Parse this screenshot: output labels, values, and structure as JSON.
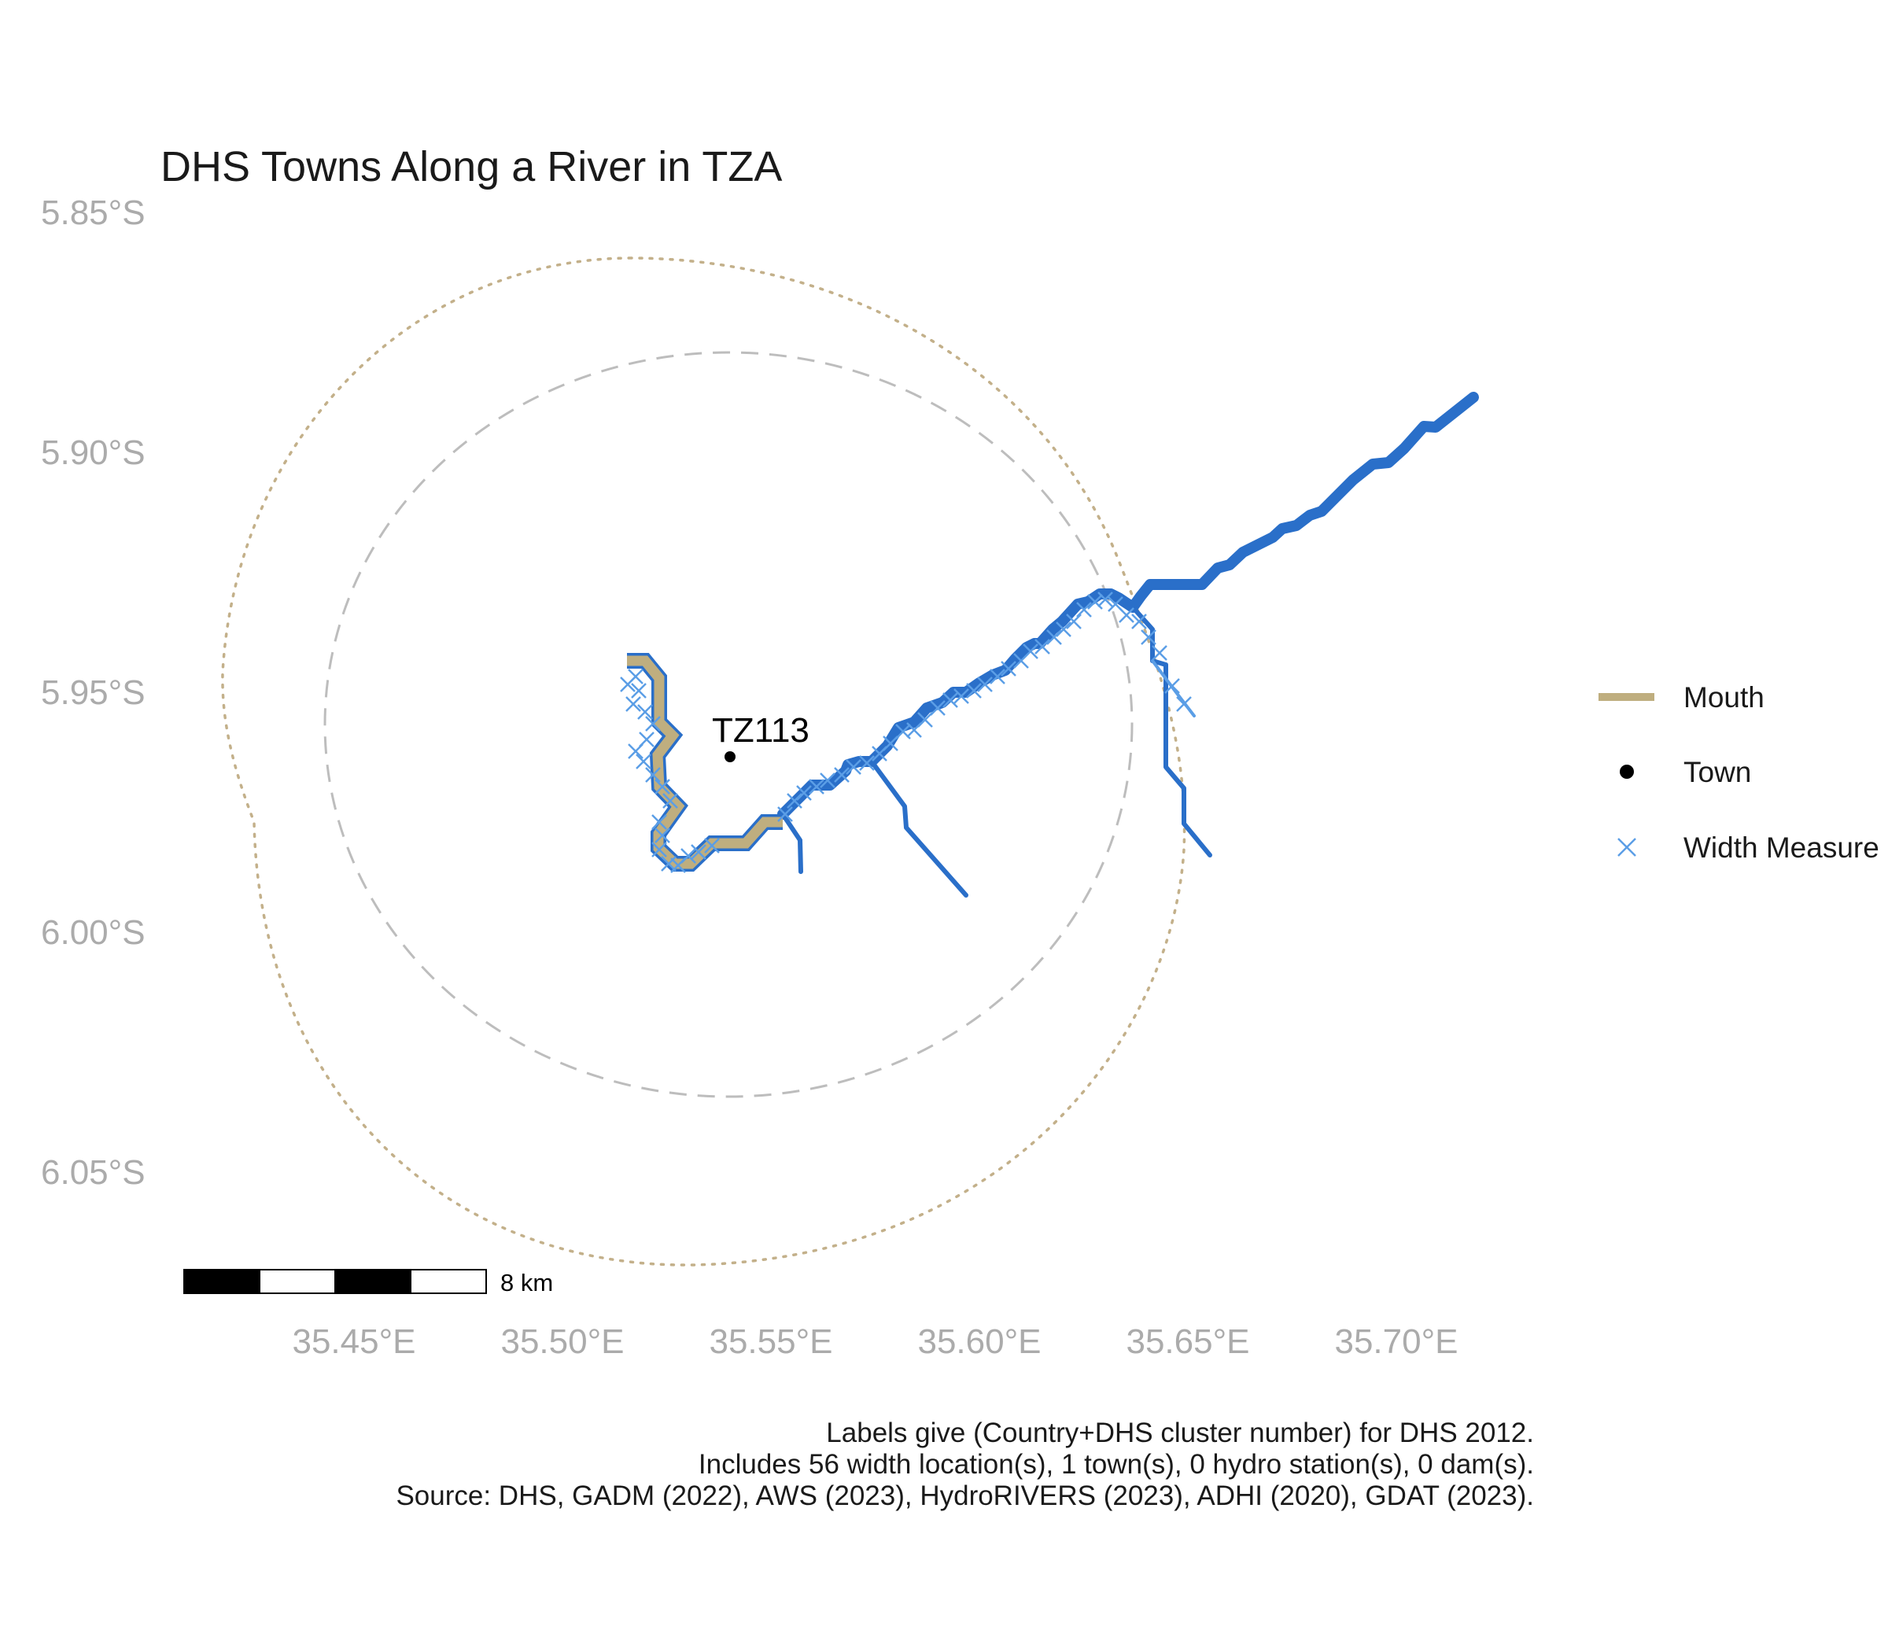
{
  "title": "DHS Towns Along a River in TZA",
  "colors": {
    "river": "#2a6fc9",
    "mouth": "#bfae7f",
    "width_marker": "#5b9ee6",
    "town": "#000000",
    "buffer_dashed": "#bdbdbd",
    "buffer_dotted": "#c3b08a",
    "axis_text": "#ababab"
  },
  "axes": {
    "y_ticks": [
      "5.85°S",
      "5.90°S",
      "5.95°S",
      "6.00°S",
      "6.05°S"
    ],
    "x_ticks": [
      "35.45°E",
      "35.50°E",
      "35.55°E",
      "35.60°E",
      "35.65°E",
      "35.70°E"
    ]
  },
  "legend": {
    "items": [
      {
        "label": "Mouth",
        "icon": "mouth-line-icon"
      },
      {
        "label": "Town",
        "icon": "town-dot-icon"
      },
      {
        "label": "Width Measure",
        "icon": "width-cross-icon"
      }
    ]
  },
  "town": {
    "label": "TZ113",
    "lon": 35.54,
    "lat": -5.963
  },
  "scale_bar": {
    "label": "8 km"
  },
  "caption": {
    "line1": "Labels give (Country+DHS cluster number) for DHS 2012.",
    "line2": "Includes 56 width location(s), 1 town(s), 0 hydro station(s), 0 dam(s).",
    "line3": "Source: DHS, GADM (2022), AWS (2023), HydroRIVERS (2023), ADHI (2020), GDAT (2023)."
  }
}
